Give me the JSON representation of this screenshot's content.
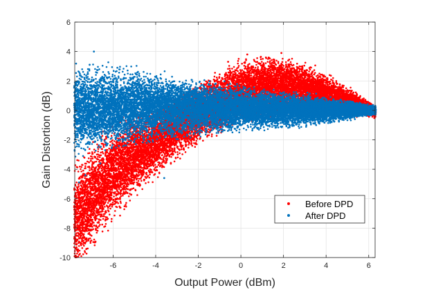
{
  "chart_data": {
    "type": "scatter",
    "title": "",
    "xlabel": "Output Power (dBm)",
    "ylabel": "Gain Distortion (dB)",
    "xlim": [
      -7.8,
      6.3
    ],
    "ylim": [
      -10,
      6
    ],
    "xticks": [
      -6,
      -4,
      -2,
      0,
      2,
      4,
      6
    ],
    "yticks": [
      -10,
      -8,
      -6,
      -4,
      -2,
      0,
      2,
      4,
      6
    ],
    "grid": true,
    "legend_position": "lower-right",
    "series": [
      {
        "name": "Before DPD",
        "color": "#ff0000",
        "points_per_x_step": 60,
        "distribution": "band",
        "center_curve": [
          [
            -7.8,
            -7.5
          ],
          [
            -7.0,
            -5.8
          ],
          [
            -6.0,
            -4.3
          ],
          [
            -5.0,
            -3.0
          ],
          [
            -4.0,
            -2.0
          ],
          [
            -3.0,
            -1.1
          ],
          [
            -2.0,
            -0.2
          ],
          [
            -1.0,
            0.6
          ],
          [
            0.0,
            1.3
          ],
          [
            1.0,
            1.6
          ],
          [
            2.0,
            1.7
          ],
          [
            3.0,
            1.5
          ],
          [
            4.0,
            1.1
          ],
          [
            5.0,
            0.6
          ],
          [
            6.0,
            0.1
          ],
          [
            6.3,
            -0.1
          ]
        ],
        "half_width_curve": [
          [
            -7.8,
            2.8
          ],
          [
            -7.0,
            2.7
          ],
          [
            -6.0,
            2.4
          ],
          [
            -5.0,
            2.1
          ],
          [
            -4.0,
            1.8
          ],
          [
            -3.0,
            1.6
          ],
          [
            -2.0,
            1.5
          ],
          [
            -1.0,
            1.5
          ],
          [
            0.0,
            1.5
          ],
          [
            1.0,
            1.5
          ],
          [
            2.0,
            1.45
          ],
          [
            3.0,
            1.3
          ],
          [
            4.0,
            1.0
          ],
          [
            5.0,
            0.7
          ],
          [
            6.0,
            0.4
          ],
          [
            6.3,
            0.3
          ]
        ],
        "outliers": [
          [
            1.9,
            3.9
          ],
          [
            0.3,
            3.8
          ],
          [
            -0.6,
            3.3
          ]
        ]
      },
      {
        "name": "After DPD",
        "color": "#0072bd",
        "points_per_x_step": 60,
        "distribution": "band",
        "center_curve": [
          [
            -7.8,
            0.0
          ],
          [
            -6.0,
            0.2
          ],
          [
            -4.0,
            0.25
          ],
          [
            -2.0,
            0.2
          ],
          [
            0.0,
            0.1
          ],
          [
            2.0,
            0.05
          ],
          [
            4.0,
            0.0
          ],
          [
            6.0,
            0.0
          ],
          [
            6.3,
            0.0
          ]
        ],
        "half_width_curve": [
          [
            -7.8,
            2.2
          ],
          [
            -6.0,
            2.0
          ],
          [
            -4.0,
            1.7
          ],
          [
            -2.0,
            1.4
          ],
          [
            0.0,
            1.1
          ],
          [
            2.0,
            0.9
          ],
          [
            4.0,
            0.7
          ],
          [
            6.0,
            0.3
          ],
          [
            6.3,
            0.25
          ]
        ],
        "outliers": [
          [
            -6.9,
            4.0
          ],
          [
            -7.6,
            -4.9
          ],
          [
            -7.3,
            -4.4
          ],
          [
            -6.6,
            -3.6
          ],
          [
            -3.6,
            -4.6
          ],
          [
            -7.1,
            3.1
          ],
          [
            -5.8,
            2.9
          ]
        ]
      }
    ]
  }
}
